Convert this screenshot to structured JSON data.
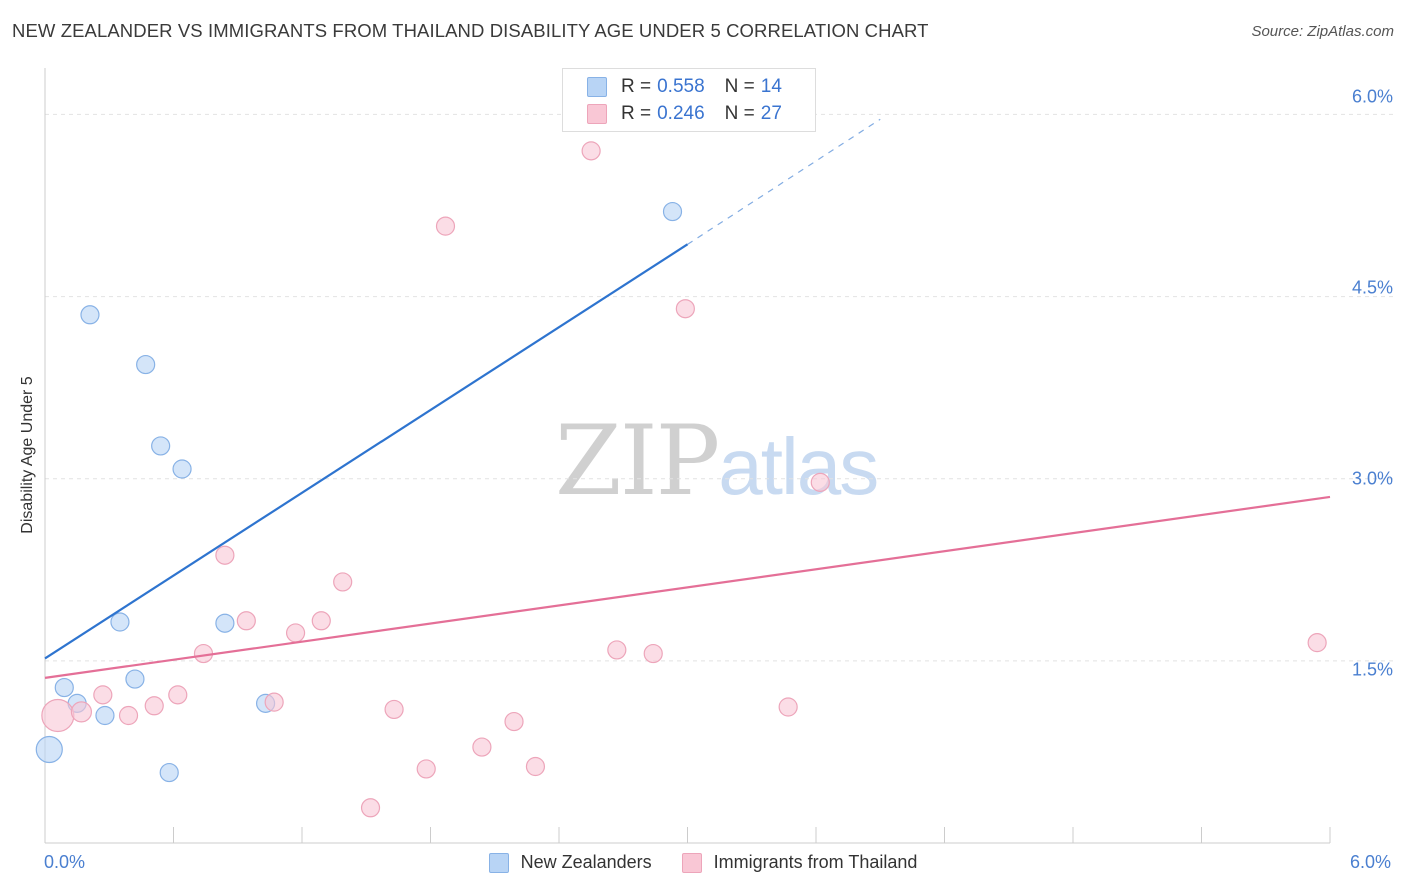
{
  "title": "NEW ZEALANDER VS IMMIGRANTS FROM THAILAND DISABILITY AGE UNDER 5 CORRELATION CHART",
  "source": "Source: ZipAtlas.com",
  "watermark": {
    "zip": "ZIP",
    "atlas": "atlas"
  },
  "legend": {
    "rows": [
      {
        "r_label": "R =",
        "r_value": "0.558",
        "n_label": "N =",
        "n_value": "14"
      },
      {
        "r_label": "R =",
        "r_value": "0.246",
        "n_label": "N =",
        "n_value": "27"
      }
    ]
  },
  "colors": {
    "blue_fill": "#b8d4f5",
    "blue_stroke": "#88b2e6",
    "blue_line": "#2e74cf",
    "pink_fill": "#f9c7d5",
    "pink_stroke": "#eda5ba",
    "pink_line": "#e46f97",
    "tick_text": "#4a7fd0"
  },
  "chart_data": {
    "type": "scatter",
    "xlabel": "",
    "ylabel": "Disability Age Under 5",
    "xlim": [
      0,
      6.0
    ],
    "ylim": [
      0,
      6.3
    ],
    "x_tick_labels": [
      "0.0%",
      "6.0%"
    ],
    "y_ticks": [
      1.5,
      3.0,
      4.5,
      6.0
    ],
    "y_tick_labels": [
      "1.5%",
      "3.0%",
      "4.5%",
      "6.0%"
    ],
    "grid": true,
    "series": [
      {
        "name": "New Zealanders",
        "color": "blue",
        "points": [
          {
            "x": 0.02,
            "y": 0.77,
            "s": 13
          },
          {
            "x": 0.09,
            "y": 1.28,
            "s": 9
          },
          {
            "x": 0.15,
            "y": 1.15,
            "s": 9
          },
          {
            "x": 0.28,
            "y": 1.05,
            "s": 9
          },
          {
            "x": 0.21,
            "y": 4.35,
            "s": 9
          },
          {
            "x": 0.47,
            "y": 3.94,
            "s": 9
          },
          {
            "x": 0.54,
            "y": 3.27,
            "s": 9
          },
          {
            "x": 0.64,
            "y": 3.08,
            "s": 9
          },
          {
            "x": 0.35,
            "y": 1.82,
            "s": 9
          },
          {
            "x": 0.42,
            "y": 1.35,
            "s": 9
          },
          {
            "x": 0.84,
            "y": 1.81,
            "s": 9
          },
          {
            "x": 1.03,
            "y": 1.15,
            "s": 9
          },
          {
            "x": 0.58,
            "y": 0.58,
            "s": 9
          },
          {
            "x": 2.93,
            "y": 5.2,
            "s": 9
          }
        ],
        "trend": {
          "x0": 0.0,
          "y0": 1.52,
          "x1": 3.0,
          "y1": 4.93,
          "dash_to_x": 3.9,
          "dash_to_y": 5.96
        }
      },
      {
        "name": "Immigrants from Thailand",
        "color": "pink",
        "points": [
          {
            "x": 0.06,
            "y": 1.05,
            "s": 16
          },
          {
            "x": 0.17,
            "y": 1.08,
            "s": 10
          },
          {
            "x": 0.27,
            "y": 1.22,
            "s": 9
          },
          {
            "x": 0.39,
            "y": 1.05,
            "s": 9
          },
          {
            "x": 0.51,
            "y": 1.13,
            "s": 9
          },
          {
            "x": 0.62,
            "y": 1.22,
            "s": 9
          },
          {
            "x": 0.74,
            "y": 1.56,
            "s": 9
          },
          {
            "x": 0.84,
            "y": 2.37,
            "s": 9
          },
          {
            "x": 0.94,
            "y": 1.83,
            "s": 9
          },
          {
            "x": 1.07,
            "y": 1.16,
            "s": 9
          },
          {
            "x": 1.17,
            "y": 1.73,
            "s": 9
          },
          {
            "x": 1.29,
            "y": 1.83,
            "s": 9
          },
          {
            "x": 1.39,
            "y": 2.15,
            "s": 9
          },
          {
            "x": 1.52,
            "y": 0.29,
            "s": 9
          },
          {
            "x": 1.63,
            "y": 1.1,
            "s": 9
          },
          {
            "x": 1.78,
            "y": 0.61,
            "s": 9
          },
          {
            "x": 1.87,
            "y": 5.08,
            "s": 9
          },
          {
            "x": 2.04,
            "y": 0.79,
            "s": 9
          },
          {
            "x": 2.19,
            "y": 1.0,
            "s": 9
          },
          {
            "x": 2.29,
            "y": 0.63,
            "s": 9
          },
          {
            "x": 2.55,
            "y": 5.7,
            "s": 9
          },
          {
            "x": 2.67,
            "y": 1.59,
            "s": 9
          },
          {
            "x": 2.84,
            "y": 1.56,
            "s": 9
          },
          {
            "x": 2.99,
            "y": 4.4,
            "s": 9
          },
          {
            "x": 3.47,
            "y": 1.12,
            "s": 9
          },
          {
            "x": 3.62,
            "y": 2.97,
            "s": 9
          },
          {
            "x": 5.94,
            "y": 1.65,
            "s": 9
          }
        ],
        "trend": {
          "x0": 0.0,
          "y0": 1.36,
          "x1": 6.0,
          "y1": 2.85
        }
      }
    ],
    "bottom_legend": [
      "New Zealanders",
      "Immigrants from Thailand"
    ]
  }
}
